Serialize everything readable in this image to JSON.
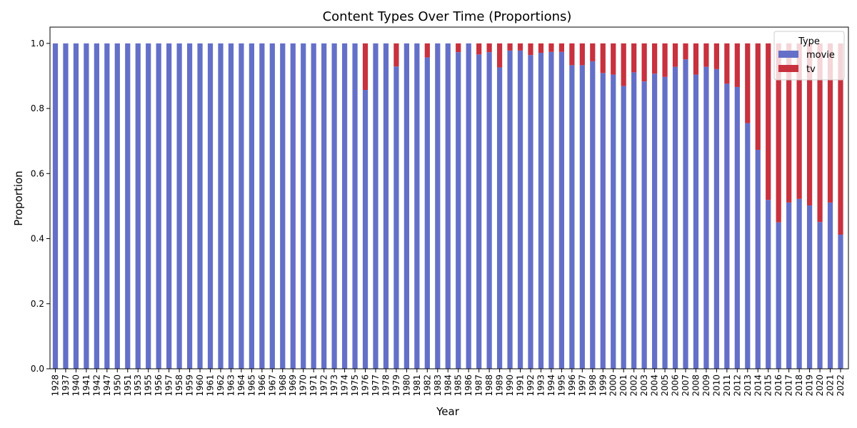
{
  "chart_data": {
    "type": "bar",
    "stacked": true,
    "title": "Content Types Over Time (Proportions)",
    "xlabel": "Year",
    "ylabel": "Proportion",
    "ylim": [
      0,
      1.05
    ],
    "yticks": [
      "0.0",
      "0.2",
      "0.4",
      "0.6",
      "0.8",
      "1.0"
    ],
    "grid": false,
    "legend": {
      "title": "Type",
      "placement": "top-right"
    },
    "categories": [
      "1928",
      "1937",
      "1940",
      "1941",
      "1942",
      "1947",
      "1950",
      "1951",
      "1953",
      "1955",
      "1956",
      "1957",
      "1958",
      "1959",
      "1960",
      "1961",
      "1962",
      "1963",
      "1964",
      "1965",
      "1966",
      "1967",
      "1968",
      "1969",
      "1970",
      "1971",
      "1972",
      "1973",
      "1974",
      "1975",
      "1976",
      "1977",
      "1978",
      "1979",
      "1980",
      "1981",
      "1982",
      "1983",
      "1984",
      "1985",
      "1986",
      "1987",
      "1988",
      "1989",
      "1990",
      "1991",
      "1992",
      "1993",
      "1994",
      "1995",
      "1996",
      "1997",
      "1998",
      "1999",
      "2000",
      "2001",
      "2002",
      "2003",
      "2004",
      "2005",
      "2006",
      "2007",
      "2008",
      "2009",
      "2010",
      "2011",
      "2012",
      "2013",
      "2014",
      "2015",
      "2016",
      "2017",
      "2018",
      "2019",
      "2020",
      "2021",
      "2022"
    ],
    "series": [
      {
        "name": "movie",
        "color": "#6470c8",
        "values": [
          1,
          1,
          1,
          1,
          1,
          1,
          1,
          1,
          1,
          1,
          1,
          1,
          1,
          1,
          1,
          1,
          1,
          1,
          1,
          1,
          1,
          1,
          1,
          1,
          1,
          1,
          1,
          1,
          1,
          1,
          0.857,
          1,
          1,
          0.929,
          1,
          1,
          0.957,
          1,
          1,
          0.973,
          1,
          0.966,
          0.973,
          0.926,
          0.978,
          0.978,
          0.964,
          0.971,
          0.974,
          0.974,
          0.933,
          0.933,
          0.945,
          0.909,
          0.904,
          0.869,
          0.911,
          0.883,
          0.907,
          0.897,
          0.928,
          0.951,
          0.904,
          0.928,
          0.921,
          0.876,
          0.866,
          0.755,
          0.673,
          0.519,
          0.45,
          0.511,
          0.522,
          0.502,
          0.451,
          0.511,
          0.412
        ]
      },
      {
        "name": "tv",
        "color": "#c8313e",
        "values": [
          0,
          0,
          0,
          0,
          0,
          0,
          0,
          0,
          0,
          0,
          0,
          0,
          0,
          0,
          0,
          0,
          0,
          0,
          0,
          0,
          0,
          0,
          0,
          0,
          0,
          0,
          0,
          0,
          0,
          0,
          0.143,
          0,
          0,
          0.071,
          0,
          0,
          0.043,
          0,
          0,
          0.027,
          0,
          0.034,
          0.027,
          0.074,
          0.022,
          0.022,
          0.036,
          0.029,
          0.026,
          0.026,
          0.067,
          0.067,
          0.055,
          0.091,
          0.096,
          0.131,
          0.089,
          0.117,
          0.093,
          0.103,
          0.072,
          0.049,
          0.096,
          0.072,
          0.079,
          0.124,
          0.134,
          0.245,
          0.327,
          0.481,
          0.55,
          0.489,
          0.478,
          0.498,
          0.549,
          0.489,
          0.588
        ]
      }
    ]
  }
}
